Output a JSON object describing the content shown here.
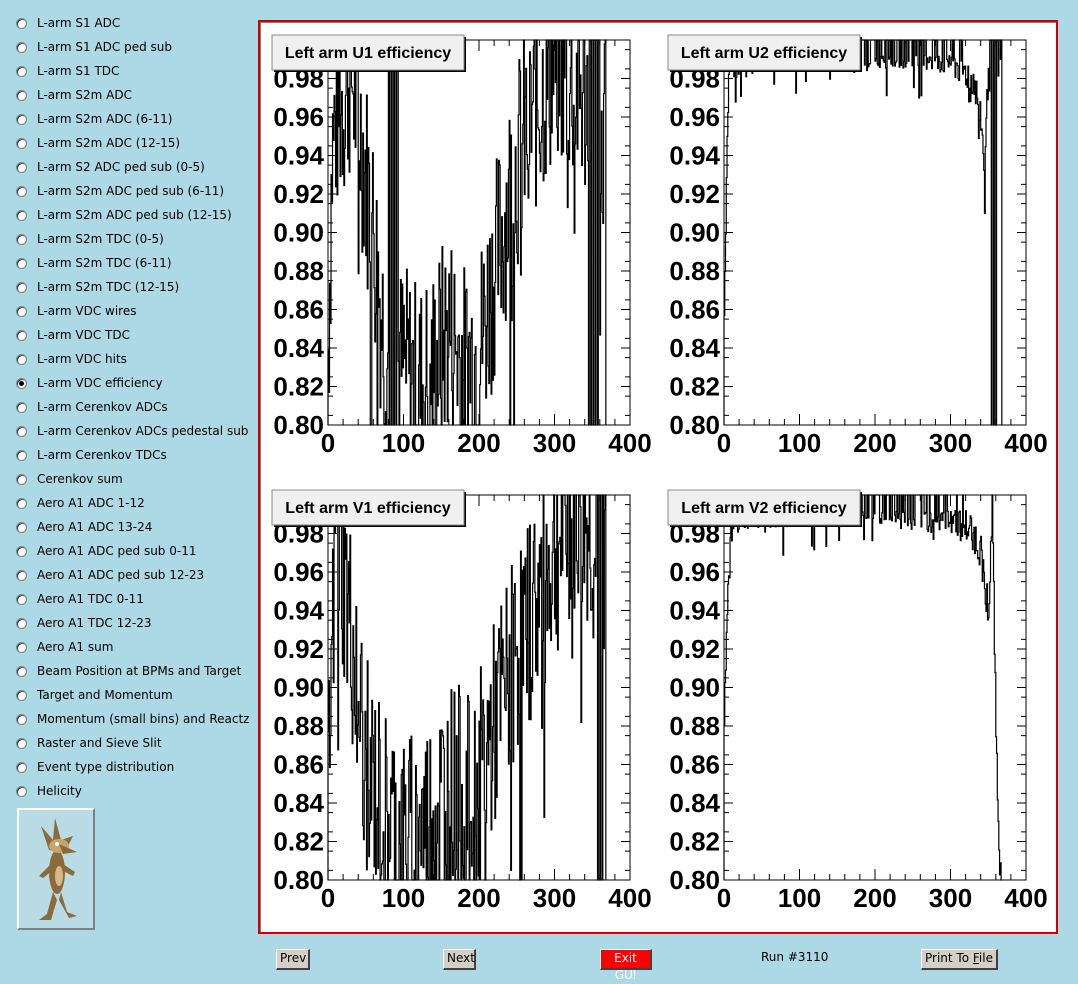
{
  "menu": [
    {
      "label": "L-arm S1 ADC",
      "selected": false
    },
    {
      "label": "L-arm S1 ADC ped sub",
      "selected": false
    },
    {
      "label": "L-arm S1 TDC",
      "selected": false
    },
    {
      "label": "L-arm S2m ADC",
      "selected": false
    },
    {
      "label": "L-arm S2m ADC (6-11)",
      "selected": false
    },
    {
      "label": "L-arm S2m ADC (12-15)",
      "selected": false
    },
    {
      "label": "L-arm S2 ADC ped sub (0-5)",
      "selected": false
    },
    {
      "label": "L-arm S2m ADC ped sub (6-11)",
      "selected": false
    },
    {
      "label": "L-arm S2m ADC ped sub (12-15)",
      "selected": false
    },
    {
      "label": "L-arm S2m TDC (0-5)",
      "selected": false
    },
    {
      "label": "L-arm S2m TDC (6-11)",
      "selected": false
    },
    {
      "label": "L-arm S2m TDC (12-15)",
      "selected": false
    },
    {
      "label": "L-arm VDC wires",
      "selected": false
    },
    {
      "label": "L-arm VDC TDC",
      "selected": false
    },
    {
      "label": "L-arm VDC hits",
      "selected": false
    },
    {
      "label": "L-arm VDC efficiency",
      "selected": true
    },
    {
      "label": "L-arm Cerenkov ADCs",
      "selected": false
    },
    {
      "label": "L-arm Cerenkov ADCs pedestal sub",
      "selected": false
    },
    {
      "label": "L-arm Cerenkov TDCs",
      "selected": false
    },
    {
      "label": "Cerenkov sum",
      "selected": false
    },
    {
      "label": "Aero A1 ADC 1-12",
      "selected": false
    },
    {
      "label": "Aero A1 ADC 13-24",
      "selected": false
    },
    {
      "label": "Aero A1 ADC ped sub 0-11",
      "selected": false
    },
    {
      "label": "Aero A1 ADC ped sub 12-23",
      "selected": false
    },
    {
      "label": "Aero A1 TDC 0-11",
      "selected": false
    },
    {
      "label": "Aero A1 TDC 12-23",
      "selected": false
    },
    {
      "label": "Aero A1 sum",
      "selected": false
    },
    {
      "label": "Beam Position at BPMs and Target",
      "selected": false
    },
    {
      "label": "Target and Momentum",
      "selected": false
    },
    {
      "label": "Momentum (small bins) and Reactz",
      "selected": false
    },
    {
      "label": "Raster and Sieve Slit",
      "selected": false
    },
    {
      "label": "Event type distribution",
      "selected": false
    },
    {
      "label": "Helicity",
      "selected": false
    }
  ],
  "logo_icon": "coyote-logo-icon",
  "buttons": {
    "prev": "Prev",
    "next": "Next",
    "exit": "Exit GUI",
    "print_prefix": "Print To ",
    "print_key": "F",
    "print_suffix": "ile"
  },
  "run_label": "Run #3110",
  "colors": {
    "background": "#add8e6",
    "canvas_border": "#d00000",
    "exit_button": "#ff0000"
  },
  "chart_data": [
    {
      "type": "bar",
      "title": "Left arm U1 efficiency",
      "xlim": [
        0,
        400
      ],
      "ylim": [
        0.8,
        1.0
      ],
      "x_ticks": [
        "0",
        "100",
        "200",
        "300",
        "400"
      ],
      "y_ticks": [
        "0.80",
        "0.82",
        "0.84",
        "0.86",
        "0.88",
        "0.90",
        "0.92",
        "0.94",
        "0.96",
        "0.98"
      ],
      "profile": {
        "x": [
          0,
          5,
          10,
          20,
          30,
          40,
          50,
          60,
          70,
          80,
          100,
          120,
          140,
          160,
          180,
          200,
          220,
          240,
          260,
          280,
          300,
          320,
          340,
          355,
          360,
          368
        ],
        "y": [
          0.84,
          0.94,
          0.96,
          0.97,
          0.985,
          0.96,
          0.93,
          0.9,
          0.86,
          0.83,
          0.83,
          0.82,
          0.83,
          0.85,
          0.83,
          0.84,
          0.88,
          0.92,
          0.95,
          0.97,
          0.99,
          0.98,
          0.97,
          0.98,
          0.9,
          0.99
        ],
        "noise": 0.035
      },
      "gaps": [
        [
          80,
          93
        ],
        [
          345,
          360
        ]
      ]
    },
    {
      "type": "bar",
      "title": "Left arm U2 efficiency",
      "xlim": [
        0,
        400
      ],
      "ylim": [
        0.8,
        1.0
      ],
      "x_ticks": [
        "0",
        "100",
        "200",
        "300",
        "400"
      ],
      "y_ticks": [
        "0.80",
        "0.82",
        "0.84",
        "0.86",
        "0.88",
        "0.90",
        "0.92",
        "0.94",
        "0.96",
        "0.98"
      ],
      "profile": {
        "x": [
          0,
          5,
          10,
          30,
          60,
          100,
          150,
          200,
          250,
          300,
          330,
          340,
          345,
          350,
          355,
          360,
          368
        ],
        "y": [
          0.85,
          0.97,
          0.99,
          0.99,
          0.995,
          0.995,
          0.995,
          0.995,
          0.995,
          0.99,
          0.98,
          0.96,
          0.93,
          0.99,
          0.95,
          0.99,
          0.99
        ],
        "noise": 0.006
      },
      "gaps": [
        [
          352,
          362
        ]
      ]
    },
    {
      "type": "bar",
      "title": "Left arm V1 efficiency",
      "xlim": [
        0,
        400
      ],
      "ylim": [
        0.8,
        1.0
      ],
      "x_ticks": [
        "0",
        "100",
        "200",
        "300",
        "400"
      ],
      "y_ticks": [
        "0.80",
        "0.82",
        "0.84",
        "0.86",
        "0.88",
        "0.90",
        "0.92",
        "0.94",
        "0.96",
        "0.98"
      ],
      "profile": {
        "x": [
          0,
          10,
          20,
          30,
          50,
          70,
          100,
          130,
          160,
          190,
          220,
          250,
          280,
          310,
          330,
          350,
          360,
          368
        ],
        "y": [
          0.84,
          0.99,
          0.96,
          0.93,
          0.86,
          0.84,
          0.82,
          0.83,
          0.85,
          0.84,
          0.88,
          0.92,
          0.95,
          0.98,
          0.99,
          0.98,
          0.9,
          0.99
        ],
        "noise": 0.035
      },
      "gaps": [
        [
          355,
          365
        ]
      ]
    },
    {
      "type": "bar",
      "title": "Left arm V2 efficiency",
      "xlim": [
        0,
        400
      ],
      "ylim": [
        0.8,
        1.0
      ],
      "x_ticks": [
        "0",
        "100",
        "200",
        "300",
        "400"
      ],
      "y_ticks": [
        "0.80",
        "0.82",
        "0.84",
        "0.86",
        "0.88",
        "0.90",
        "0.92",
        "0.94",
        "0.96",
        "0.98"
      ],
      "profile": {
        "x": [
          0,
          5,
          10,
          30,
          60,
          100,
          150,
          200,
          250,
          300,
          330,
          340,
          350,
          355,
          360,
          365,
          368
        ],
        "y": [
          0.88,
          0.95,
          0.99,
          0.99,
          0.99,
          0.995,
          0.995,
          0.995,
          0.99,
          0.99,
          0.98,
          0.97,
          0.94,
          0.99,
          0.88,
          0.8,
          0.8
        ],
        "noise": 0.006
      },
      "gaps": []
    }
  ]
}
